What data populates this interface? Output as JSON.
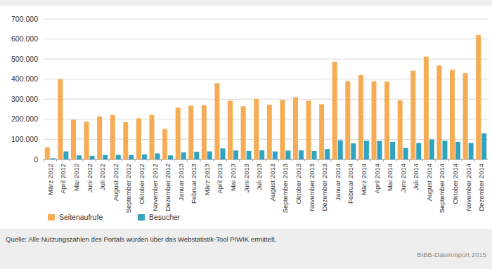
{
  "chart_data": {
    "type": "bar",
    "categories": [
      "März 2012",
      "April 2012",
      "Mai 2012",
      "Juni 2012",
      "Juli 2012",
      "August 2012",
      "September 2012",
      "Oktober 2012",
      "November 2012",
      "Dezember 2012",
      "Januar 2013",
      "Februar 2013",
      "März 2013",
      "April 2013",
      "Mai 2013",
      "Juni 2013",
      "Juli 2013",
      "August 2013",
      "September 2013",
      "Oktober 2013",
      "November 2013",
      "Dezember 2013",
      "Januar 2014",
      "Februar 2014",
      "März 2014",
      "April 2014",
      "Mai 2014",
      "Juni 2014",
      "Juli 2014",
      "August 2014",
      "September 2014",
      "Oktober 2014",
      "November 2014",
      "Dezember 2014"
    ],
    "series": [
      {
        "name": "Seitenaufrufe",
        "color": "#f5ac55",
        "values": [
          60000,
          400000,
          198000,
          188000,
          215000,
          222000,
          186000,
          205000,
          222000,
          152000,
          258000,
          268000,
          270000,
          380000,
          293000,
          265000,
          302000,
          273000,
          297000,
          310000,
          293000,
          275000,
          487000,
          390000,
          420000,
          390000,
          388000,
          295000,
          442000,
          512000,
          468000,
          447000,
          430000,
          620000
        ]
      },
      {
        "name": "Besucher",
        "color": "#2fa3bf",
        "values": [
          6000,
          40000,
          20000,
          18000,
          22000,
          23000,
          21000,
          25000,
          30000,
          20000,
          35000,
          38000,
          40000,
          55000,
          45000,
          42000,
          45000,
          40000,
          44000,
          45000,
          42000,
          52000,
          95000,
          80000,
          93000,
          92000,
          88000,
          57000,
          82000,
          100000,
          93000,
          88000,
          82000,
          130000
        ]
      }
    ],
    "ylim": [
      0,
      700000
    ],
    "yticks": [
      0,
      {
        "value": 100000,
        "label": "100.000"
      },
      {
        "value": 200000,
        "label": "200.000"
      },
      {
        "value": 300000,
        "label": "300.000"
      },
      {
        "value": 400000,
        "label": "400.000"
      },
      {
        "value": 500000,
        "label": "500.000"
      },
      {
        "value": 600000,
        "label": "600.000"
      },
      {
        "value": 700000,
        "label": "700.000"
      }
    ],
    "grid": true,
    "legend": "bottom-left",
    "annotations": [
      "Quelle: Alle Nutzungszahlen des Portals wurden über das Webstatistik-Tool PIWIK ermittelt.",
      "BIBB-Datenreport 2015"
    ]
  }
}
